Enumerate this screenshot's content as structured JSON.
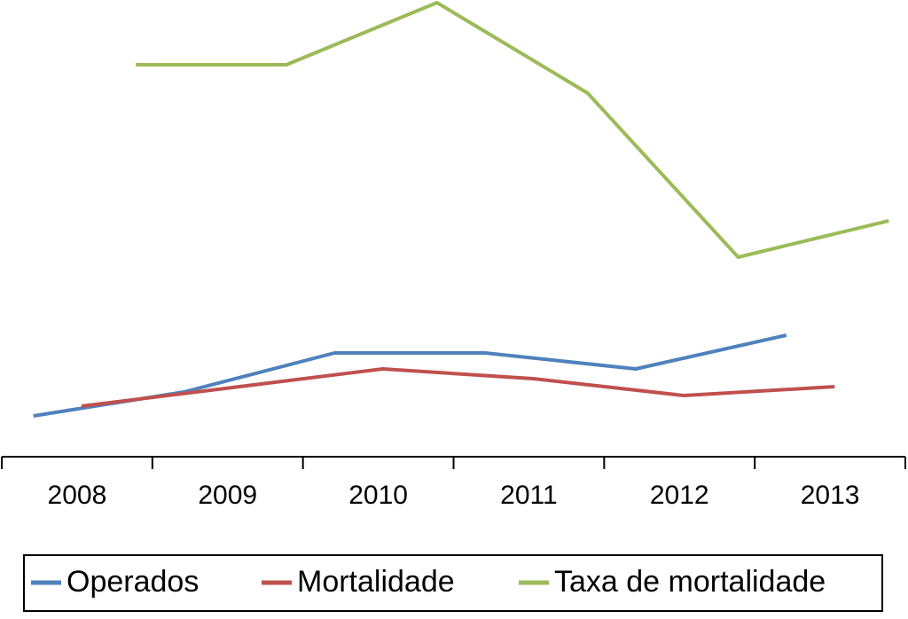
{
  "chart_data": {
    "type": "line",
    "categories": [
      "2008",
      "2009",
      "2010",
      "2011",
      "2012",
      "2013"
    ],
    "series": [
      {
        "name": "Operados",
        "color": "#4f81bd",
        "values": [
          46,
          73,
          117,
          117,
          99,
          137
        ]
      },
      {
        "name": "Mortalidade",
        "color": "#c0504d",
        "values": [
          57,
          78,
          99,
          88,
          69,
          79
        ]
      },
      {
        "name": "Taxa de mortalidade",
        "color": "#9bbb59",
        "values": [
          442,
          442,
          512,
          410,
          225,
          266
        ]
      }
    ]
  }
}
